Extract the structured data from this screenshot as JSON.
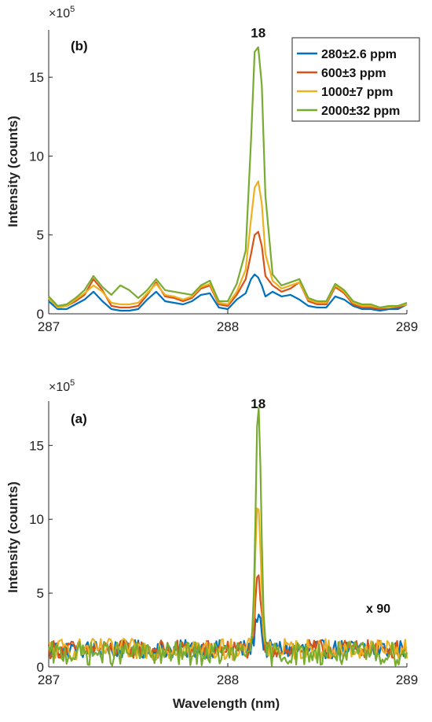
{
  "chart_data": [
    {
      "type": "line",
      "panel_label": "(b)",
      "multiplier": "×10",
      "multiplier_exp": "5",
      "xlabel": "",
      "ylabel": "Intensity (counts)",
      "xlim": [
        287,
        289
      ],
      "ylim": [
        0,
        18
      ],
      "xticks": [
        "287",
        "288",
        "289"
      ],
      "yticks": [
        "0",
        "5",
        "10",
        "15"
      ],
      "peak_label": "18",
      "peak_x": 288.17,
      "legend": {
        "placement": "top-right"
      },
      "series": [
        {
          "name": "280±2.6 ppm",
          "color": "#0072BD",
          "x": [
            287.0,
            287.05,
            287.1,
            287.15,
            287.2,
            287.25,
            287.3,
            287.35,
            287.4,
            287.45,
            287.5,
            287.55,
            287.6,
            287.65,
            287.7,
            287.75,
            287.8,
            287.85,
            287.9,
            287.95,
            288.0,
            288.05,
            288.1,
            288.13,
            288.15,
            288.17,
            288.19,
            288.21,
            288.25,
            288.3,
            288.35,
            288.4,
            288.45,
            288.5,
            288.55,
            288.6,
            288.65,
            288.7,
            288.75,
            288.8,
            288.85,
            288.9,
            288.95,
            289.0
          ],
          "y": [
            0.8,
            0.3,
            0.3,
            0.6,
            0.9,
            1.4,
            0.8,
            0.3,
            0.2,
            0.2,
            0.3,
            0.9,
            1.4,
            0.8,
            0.7,
            0.6,
            0.8,
            1.2,
            1.3,
            0.4,
            0.3,
            0.9,
            1.3,
            2.2,
            2.5,
            2.3,
            1.8,
            1.1,
            1.4,
            1.1,
            1.2,
            0.9,
            0.5,
            0.4,
            0.4,
            1.1,
            0.9,
            0.5,
            0.3,
            0.3,
            0.2,
            0.3,
            0.3,
            0.6
          ]
        },
        {
          "name": "600±3 ppm",
          "color": "#D95319",
          "x": [
            287.0,
            287.05,
            287.1,
            287.15,
            287.2,
            287.25,
            287.3,
            287.35,
            287.4,
            287.45,
            287.5,
            287.55,
            287.6,
            287.65,
            287.7,
            287.75,
            287.8,
            287.85,
            287.9,
            287.95,
            288.0,
            288.05,
            288.1,
            288.13,
            288.15,
            288.17,
            288.19,
            288.21,
            288.25,
            288.3,
            288.35,
            288.4,
            288.45,
            288.5,
            288.55,
            288.6,
            288.65,
            288.7,
            288.75,
            288.8,
            288.85,
            288.9,
            288.95,
            289.0
          ],
          "y": [
            1.0,
            0.4,
            0.5,
            0.8,
            1.2,
            2.2,
            1.5,
            0.5,
            0.4,
            0.4,
            0.5,
            1.2,
            2.0,
            1.1,
            1.0,
            0.8,
            1.0,
            1.6,
            1.8,
            0.6,
            0.5,
            1.2,
            2.2,
            3.8,
            5.0,
            5.2,
            4.3,
            2.4,
            1.8,
            1.4,
            1.6,
            2.0,
            0.8,
            0.6,
            0.6,
            1.7,
            1.3,
            0.6,
            0.4,
            0.4,
            0.3,
            0.4,
            0.4,
            0.6
          ]
        },
        {
          "name": "1000±7 ppm",
          "color": "#EDB120",
          "x": [
            287.0,
            287.05,
            287.1,
            287.15,
            287.2,
            287.25,
            287.3,
            287.35,
            287.4,
            287.45,
            287.5,
            287.55,
            287.6,
            287.65,
            287.7,
            287.75,
            287.8,
            287.85,
            287.9,
            287.95,
            288.0,
            288.05,
            288.1,
            288.13,
            288.15,
            288.17,
            288.19,
            288.21,
            288.25,
            288.3,
            288.35,
            288.4,
            288.45,
            288.5,
            288.55,
            288.6,
            288.65,
            288.7,
            288.75,
            288.8,
            288.85,
            288.9,
            288.95,
            289.0
          ],
          "y": [
            1.0,
            0.4,
            0.5,
            0.9,
            1.3,
            1.8,
            1.4,
            0.7,
            0.6,
            0.6,
            0.7,
            1.3,
            1.9,
            1.2,
            1.1,
            0.9,
            1.1,
            1.7,
            1.9,
            0.7,
            0.6,
            1.4,
            2.8,
            6.0,
            8.0,
            8.4,
            7.0,
            3.8,
            2.1,
            1.6,
            1.8,
            2.0,
            0.9,
            0.7,
            0.7,
            1.8,
            1.4,
            0.7,
            0.5,
            0.5,
            0.4,
            0.4,
            0.5,
            0.6
          ]
        },
        {
          "name": "2000±32 ppm",
          "color": "#77AC30",
          "x": [
            287.0,
            287.05,
            287.1,
            287.15,
            287.2,
            287.25,
            287.3,
            287.35,
            287.4,
            287.45,
            287.5,
            287.55,
            287.6,
            287.65,
            287.7,
            287.75,
            287.8,
            287.85,
            287.9,
            287.95,
            288.0,
            288.05,
            288.1,
            288.13,
            288.15,
            288.17,
            288.19,
            288.21,
            288.25,
            288.3,
            288.35,
            288.4,
            288.45,
            288.5,
            288.55,
            288.6,
            288.65,
            288.7,
            288.75,
            288.8,
            288.85,
            288.9,
            288.95,
            289.0
          ],
          "y": [
            1.1,
            0.5,
            0.6,
            1.0,
            1.5,
            2.4,
            1.7,
            1.2,
            1.8,
            1.5,
            1.0,
            1.5,
            2.2,
            1.5,
            1.4,
            1.3,
            1.2,
            1.8,
            2.1,
            0.8,
            0.8,
            1.9,
            4.0,
            11.0,
            16.6,
            16.9,
            14.5,
            7.5,
            2.5,
            1.8,
            2.0,
            2.2,
            1.0,
            0.8,
            0.8,
            1.9,
            1.5,
            0.8,
            0.6,
            0.6,
            0.4,
            0.5,
            0.5,
            0.7
          ]
        }
      ]
    },
    {
      "type": "line",
      "panel_label": "(a)",
      "multiplier": "×10",
      "multiplier_exp": "5",
      "xlabel": "Wavelength (nm)",
      "ylabel": "Intensity (counts)",
      "xlim": [
        287,
        289
      ],
      "ylim": [
        0,
        18
      ],
      "xticks": [
        "287",
        "288",
        "289"
      ],
      "yticks": [
        "0",
        "5",
        "10",
        "15"
      ],
      "peak_label": "18",
      "peak_x": 288.17,
      "annotation": "x 90",
      "series": [
        {
          "name": "280±2.6 ppm",
          "color": "#0072BD",
          "peak": 3.8,
          "base": 1.2,
          "noise": 0.35
        },
        {
          "name": "600±3 ppm",
          "color": "#D95319",
          "peak": 5.8,
          "base": 1.2,
          "noise": 0.35
        },
        {
          "name": "1000±7 ppm",
          "color": "#EDB120",
          "peak": 10.9,
          "base": 1.2,
          "noise": 0.4
        },
        {
          "name": "2000±32 ppm",
          "color": "#77AC30",
          "peak": 17.0,
          "base": 0.9,
          "noise": 0.45
        }
      ]
    }
  ]
}
